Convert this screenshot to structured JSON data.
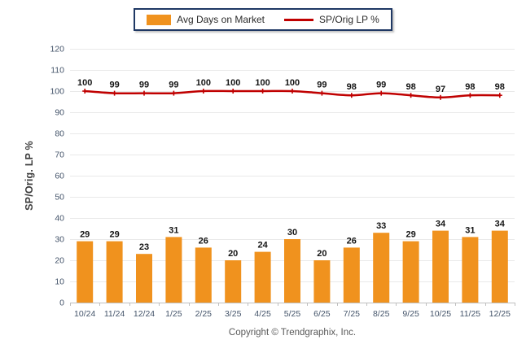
{
  "chart_data": {
    "type": "combo",
    "categories": [
      "10/24",
      "11/24",
      "12/24",
      "1/25",
      "2/25",
      "3/25",
      "4/25",
      "5/25",
      "6/25",
      "7/25",
      "8/25",
      "9/25",
      "10/25",
      "11/25",
      "12/25"
    ],
    "series": [
      {
        "name": "Avg Days on Market",
        "type": "bar",
        "color": "#F0921E",
        "values": [
          29,
          29,
          23,
          31,
          26,
          20,
          24,
          30,
          20,
          26,
          33,
          29,
          34,
          31,
          34
        ]
      },
      {
        "name": "SP/Orig LP %",
        "type": "line",
        "color": "#C00000",
        "values": [
          100,
          99,
          99,
          99,
          100,
          100,
          100,
          100,
          99,
          98,
          99,
          98,
          97,
          98,
          98
        ]
      }
    ],
    "xlabel": "",
    "ylabel": "SP/Orig. LP %",
    "ylim": [
      0,
      120
    ],
    "ytick_step": 10,
    "grid": true,
    "data_labels": true,
    "legend_position": "top-center"
  },
  "legend": {
    "border_color": "#1F3864"
  },
  "axis_style": {
    "tick_label_color": "#44546A",
    "gridline_color": "#E9E9E9",
    "axis_line_color": "#BFBFBF"
  },
  "footer": {
    "copyright": "Copyright © Trendgraphix, Inc."
  }
}
